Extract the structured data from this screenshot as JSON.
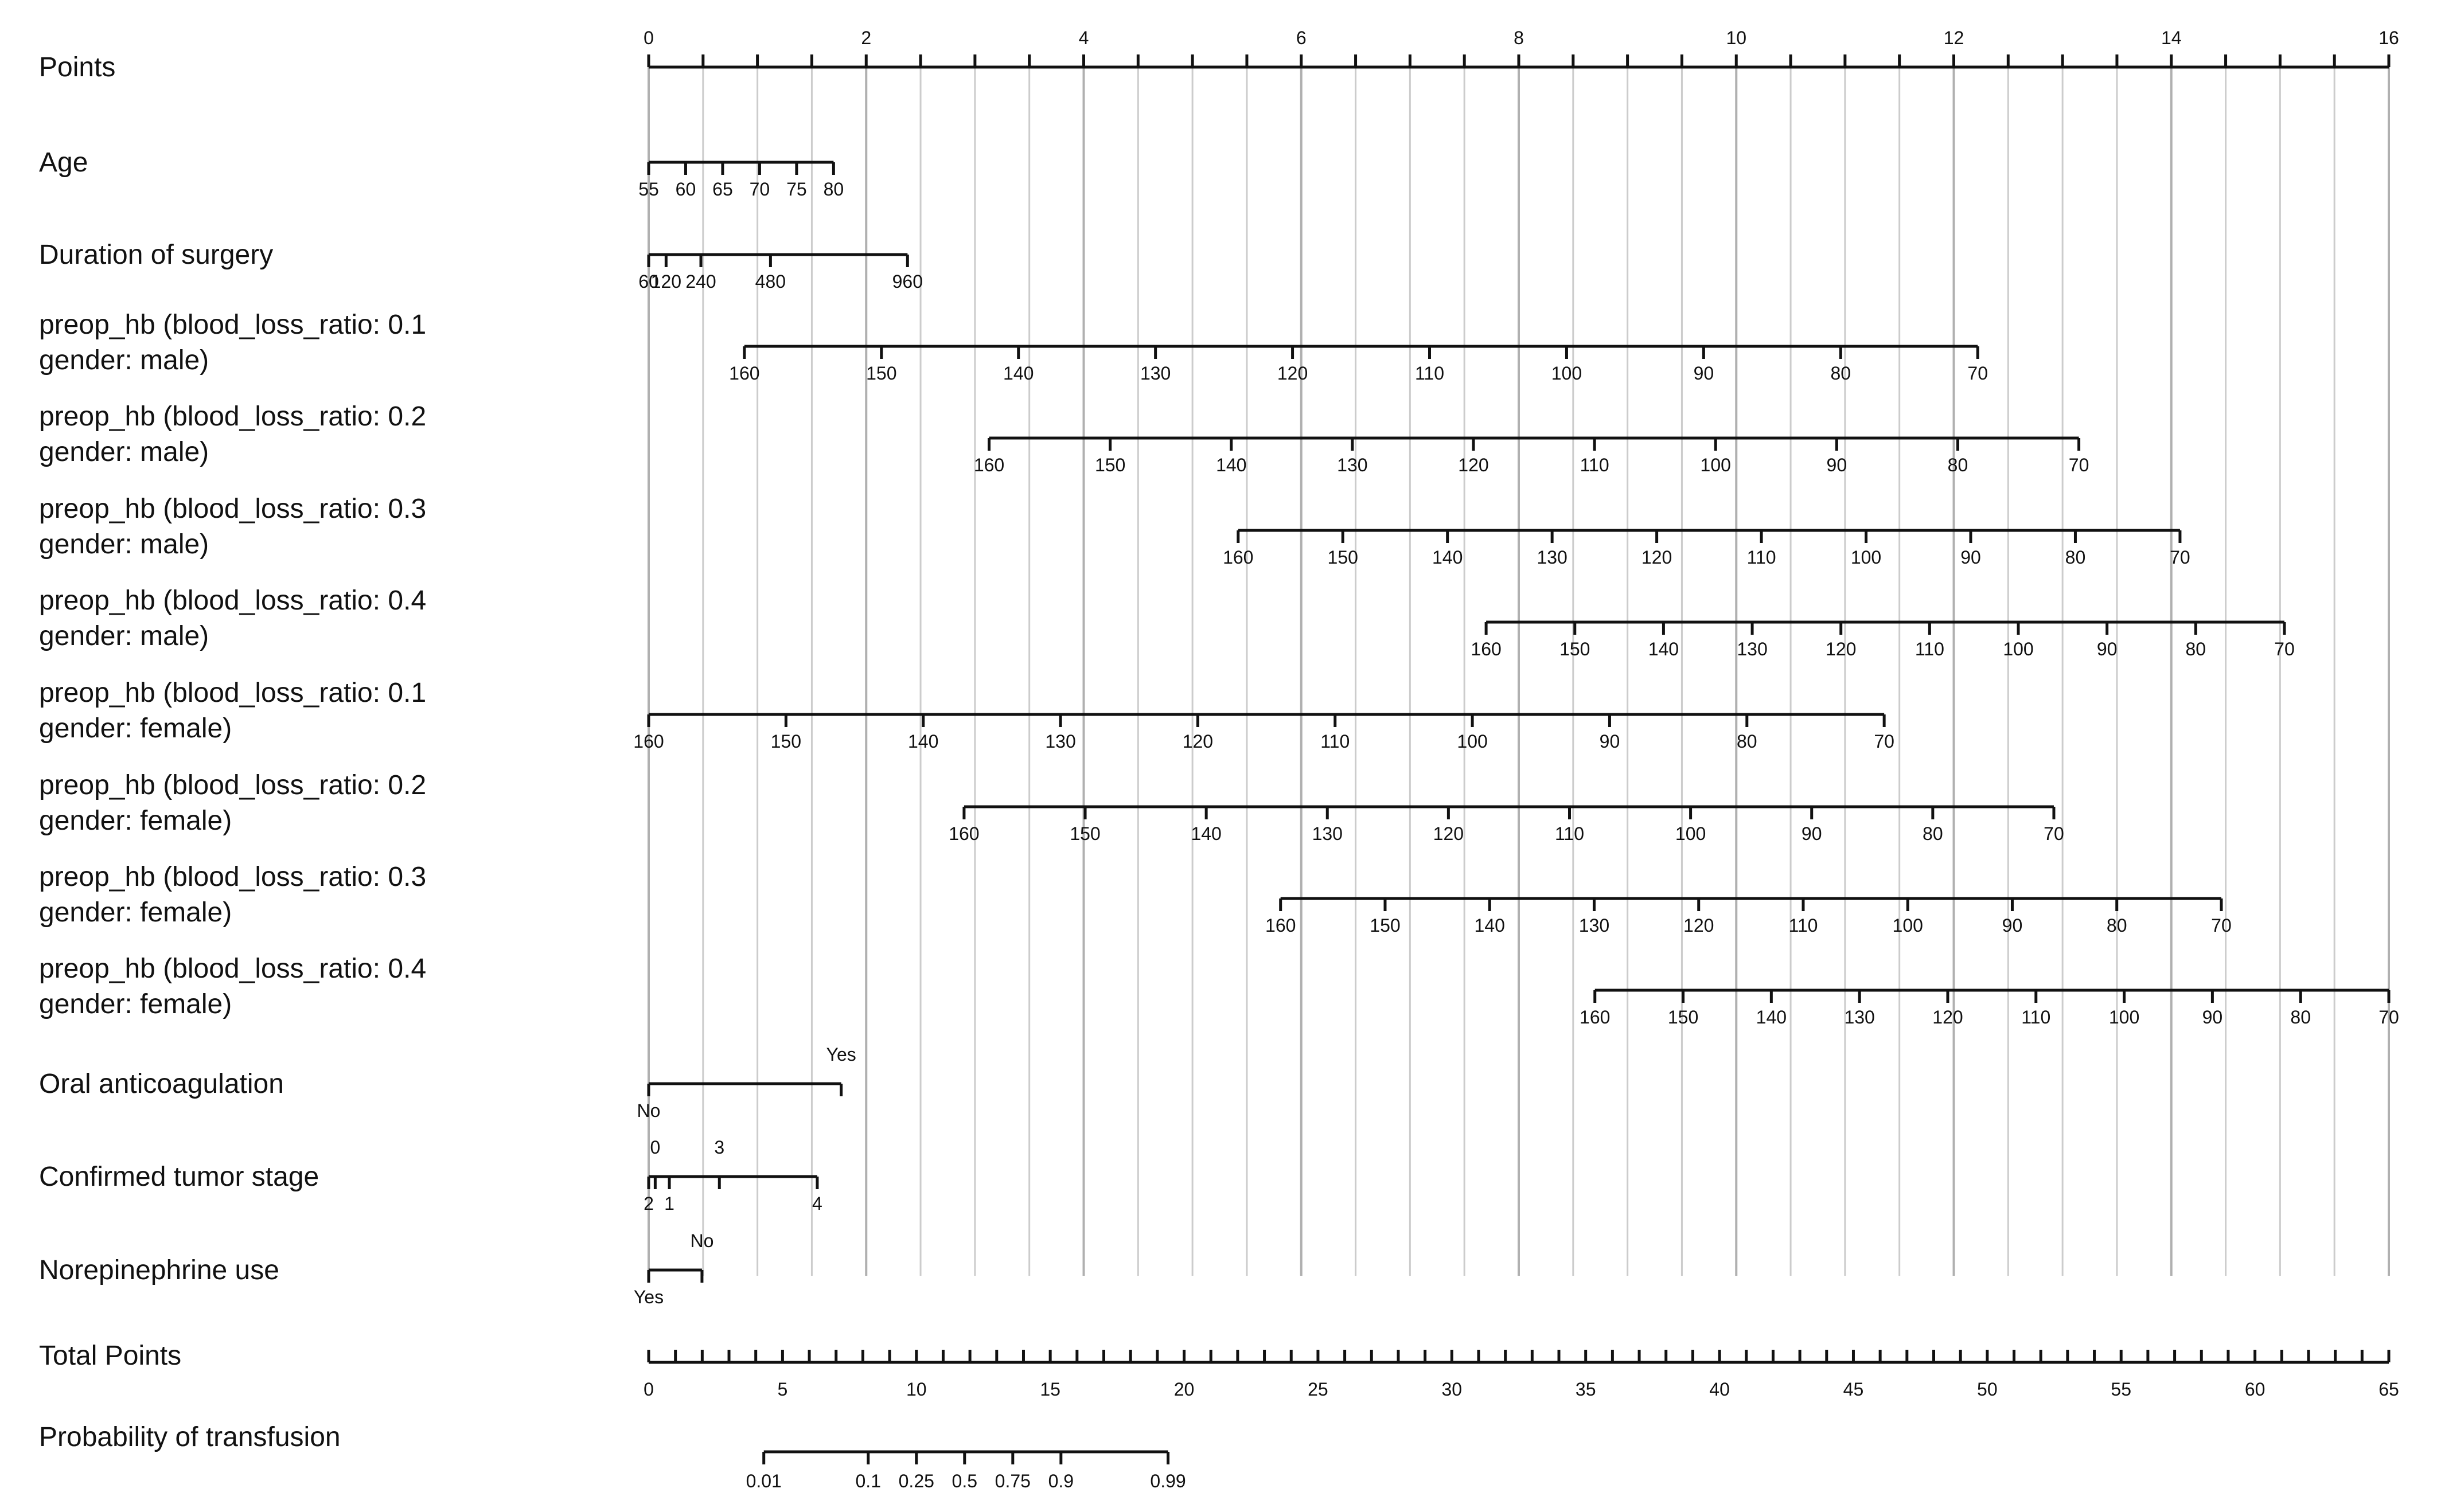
{
  "chart_data": {
    "type": "nomogram",
    "points_scale": {
      "label": "Points",
      "min": 0,
      "max": 16,
      "labeled_ticks": [
        0,
        2,
        4,
        6,
        8,
        10,
        12,
        14,
        16
      ],
      "minor_step": 0.5
    },
    "grid": true,
    "variables": [
      {
        "label": "Age",
        "ticks": [
          {
            "v": "55",
            "p": 0
          },
          {
            "v": "60",
            "p": 0.34
          },
          {
            "v": "65",
            "p": 0.68
          },
          {
            "v": "70",
            "p": 1.02
          },
          {
            "v": "75",
            "p": 1.36
          },
          {
            "v": "80",
            "p": 1.7
          }
        ]
      },
      {
        "label": "Duration of surgery",
        "ticks": [
          {
            "v": "60",
            "p": 0.0
          },
          {
            "v": "120",
            "p": 0.16
          },
          {
            "v": "240",
            "p": 0.48
          },
          {
            "v": "480",
            "p": 1.12
          },
          {
            "v": "960",
            "p": 2.38
          }
        ]
      },
      {
        "label": [
          "preop_hb (blood_loss_ratio: 0.1",
          "gender: male)"
        ],
        "values": [
          "160",
          "150",
          "140",
          "130",
          "120",
          "110",
          "100",
          "90",
          "80",
          "70"
        ],
        "start": 0.88,
        "end": 12.22
      },
      {
        "label": [
          "preop_hb (blood_loss_ratio: 0.2",
          "gender: male)"
        ],
        "values": [
          "160",
          "150",
          "140",
          "130",
          "120",
          "110",
          "100",
          "90",
          "80",
          "70"
        ],
        "start": 3.13,
        "end": 13.15
      },
      {
        "label": [
          "preop_hb (blood_loss_ratio: 0.3",
          "gender: male)"
        ],
        "values": [
          "160",
          "150",
          "140",
          "130",
          "120",
          "110",
          "100",
          "90",
          "80",
          "70"
        ],
        "start": 5.42,
        "end": 14.08
      },
      {
        "label": [
          "preop_hb (blood_loss_ratio: 0.4",
          "gender: male)"
        ],
        "values": [
          "160",
          "150",
          "140",
          "130",
          "120",
          "110",
          "100",
          "90",
          "80",
          "70"
        ],
        "start": 7.7,
        "end": 15.04
      },
      {
        "label": [
          "preop_hb (blood_loss_ratio: 0.1",
          "gender: female)"
        ],
        "values": [
          "160",
          "150",
          "140",
          "130",
          "120",
          "110",
          "100",
          "90",
          "80",
          "70"
        ],
        "start": 0.0,
        "end": 11.36
      },
      {
        "label": [
          "preop_hb (blood_loss_ratio: 0.2",
          "gender: female)"
        ],
        "values": [
          "160",
          "150",
          "140",
          "130",
          "120",
          "110",
          "100",
          "90",
          "80",
          "70"
        ],
        "start": 2.9,
        "end": 12.92
      },
      {
        "label": [
          "preop_hb (blood_loss_ratio: 0.3",
          "gender: female)"
        ],
        "values": [
          "160",
          "150",
          "140",
          "130",
          "120",
          "110",
          "100",
          "90",
          "80",
          "70"
        ],
        "start": 5.81,
        "end": 14.46
      },
      {
        "label": [
          "preop_hb (blood_loss_ratio: 0.4",
          "gender: female)"
        ],
        "values": [
          "160",
          "150",
          "140",
          "130",
          "120",
          "110",
          "100",
          "90",
          "80",
          "70"
        ],
        "start": 8.7,
        "end": 16.0
      },
      {
        "label": "Oral anticoagulation",
        "ticks": [
          {
            "v": "No",
            "p": 0,
            "side": "below"
          },
          {
            "v": "Yes",
            "p": 1.77,
            "side": "above"
          }
        ]
      },
      {
        "label": "Confirmed tumor stage",
        "ticks": [
          {
            "v": "2",
            "p": 0,
            "side": "below"
          },
          {
            "v": "0",
            "p": 0.06,
            "side": "above"
          },
          {
            "v": "1",
            "p": 0.19,
            "side": "below"
          },
          {
            "v": "3",
            "p": 0.65,
            "side": "above"
          },
          {
            "v": "4",
            "p": 1.55,
            "side": "below"
          }
        ]
      },
      {
        "label": "Norepinephrine use",
        "ticks": [
          {
            "v": "Yes",
            "p": 0,
            "side": "below"
          },
          {
            "v": "No",
            "p": 0.49,
            "side": "above"
          }
        ]
      }
    ],
    "total_points": {
      "label": "Total Points",
      "min": 0,
      "max": 65,
      "labeled_ticks": [
        0,
        5,
        10,
        15,
        20,
        25,
        30,
        35,
        40,
        45,
        50,
        55,
        60,
        65
      ],
      "minor_step": 1
    },
    "probability": {
      "label": "Probability of transfusion",
      "ticks": [
        {
          "v": "0.01",
          "tp": 4.3
        },
        {
          "v": "0.1",
          "tp": 8.2
        },
        {
          "v": "0.25",
          "tp": 10.0
        },
        {
          "v": "0.5",
          "tp": 11.8
        },
        {
          "v": "0.75",
          "tp": 13.6
        },
        {
          "v": "0.9",
          "tp": 15.4
        },
        {
          "v": "0.99",
          "tp": 19.4
        }
      ]
    }
  }
}
